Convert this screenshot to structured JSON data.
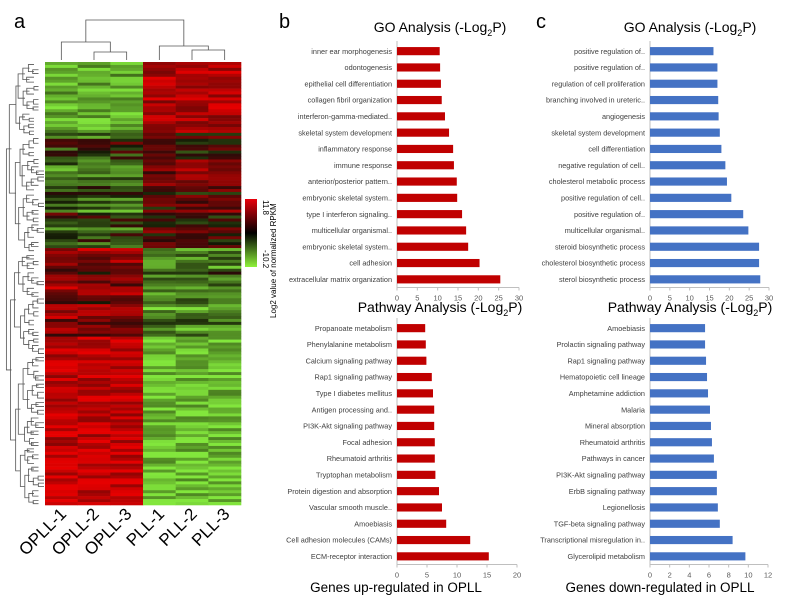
{
  "panel_labels": {
    "a": "a",
    "b": "b",
    "c": "c"
  },
  "heatmap": {
    "samples": [
      "OPLL-1",
      "OPLL-2",
      "OPLL-3",
      "PLL-1",
      "PLL-2",
      "PLL-3"
    ],
    "colorbar": {
      "label": "Log2 value of normalized RPKM",
      "max_label": "11.8",
      "min_label": "-10.2",
      "max": 11.8,
      "min": -10.2,
      "colors": {
        "high": "#e8000b",
        "mid": "#000000",
        "low": "#8ef23a"
      }
    }
  },
  "footers": {
    "up": "Genes up-regulated in OPLL",
    "down": "Genes down-regulated in OPLL"
  },
  "colors": {
    "up_bar": "#c00000",
    "down_bar": "#4472c4"
  },
  "chart_data": [
    {
      "id": "go-up",
      "type": "bar",
      "orientation": "horizontal",
      "title_main": "GO Analysis (-Log",
      "title_sub": "2",
      "title_end": "P)",
      "categories": [
        "inner ear morphogenesis",
        "odontogenesis",
        "epithelial cell differentiation",
        "collagen fibril organization",
        "interferon-gamma-mediated..",
        "skeletal system development",
        "inflammatory response",
        "immune response",
        "anterior/posterior pattern..",
        "embryonic skeletal system..",
        "type I interferon signaling..",
        "multicellular organismal..",
        "embryonic skeletal system..",
        "cell adhesion",
        "extracellular matrix organization"
      ],
      "values": [
        10.5,
        10.6,
        10.8,
        11.0,
        11.8,
        12.8,
        13.8,
        14.0,
        14.7,
        14.8,
        16.0,
        17.0,
        17.5,
        20.3,
        25.4
      ],
      "xlim": [
        0,
        30
      ],
      "xticks": [
        0,
        5,
        10,
        15,
        20,
        25,
        30
      ],
      "color": "#c00000"
    },
    {
      "id": "go-down",
      "type": "bar",
      "orientation": "horizontal",
      "title_main": "GO Analysis (-Log",
      "title_sub": "2",
      "title_end": "P)",
      "categories": [
        "positive regulation of..",
        "positive regulation of..",
        "regulation of cell proliferation",
        "branching involved in ureteric..",
        "angiogenesis",
        "skeletal system development",
        "cell differentiation",
        "negative regulation of cell..",
        "cholesterol metabolic process",
        "positive regulation of cell..",
        "positive regulation of..",
        "multicellular organismal..",
        "steroid biosynthetic process",
        "cholesterol biosynthetic process",
        "sterol biosynthetic process"
      ],
      "values": [
        16.0,
        17.0,
        17.0,
        17.2,
        17.3,
        17.6,
        18.0,
        19.0,
        19.4,
        20.5,
        23.5,
        24.8,
        27.5,
        27.5,
        27.8
      ],
      "xlim": [
        0,
        30
      ],
      "xticks": [
        0,
        5,
        10,
        15,
        20,
        25,
        30
      ],
      "color": "#4472c4"
    },
    {
      "id": "pathway-up",
      "type": "bar",
      "orientation": "horizontal",
      "title_main": "Pathway Analysis (-Log",
      "title_sub": "2",
      "title_end": "P)",
      "categories": [
        "Propanoate metabolism",
        "Phenylalanine metabolism",
        "Calcium signaling pathway",
        "Rap1 signaling pathway",
        "Type I diabetes mellitus",
        "Antigen processing and..",
        "PI3K-Akt signaling pathway",
        "Focal adhesion",
        "Rheumatoid arthritis",
        "Tryptophan metabolism",
        "Protein digestion and absorption",
        "Vascular smooth muscle..",
        "Amoebiasis",
        "Cell adhesion molecules (CAMs)",
        "ECM-receptor interaction"
      ],
      "values": [
        4.7,
        4.8,
        4.9,
        5.8,
        6.0,
        6.2,
        6.2,
        6.3,
        6.3,
        6.4,
        7.0,
        7.5,
        8.2,
        12.2,
        15.3
      ],
      "xlim": [
        0,
        20
      ],
      "xticks": [
        0,
        5,
        10,
        15,
        20
      ],
      "color": "#c00000"
    },
    {
      "id": "pathway-down",
      "type": "bar",
      "orientation": "horizontal",
      "title_main": "Pathway Analysis (-Log",
      "title_sub": "2",
      "title_end": "P)",
      "categories": [
        "Amoebiasis",
        "Prolactin signaling pathway",
        "Rap1 signaling pathway",
        "Hematopoietic cell lineage",
        "Amphetamine addiction",
        "Malaria",
        "Mineral absorption",
        "Rheumatoid arthritis",
        "Pathways in cancer",
        "PI3K-Akt signaling pathway",
        "ErbB signaling pathway",
        "Legionellosis",
        "TGF-beta signaling pathway",
        "Transcriptional misregulation in..",
        "Glycerolipid metabolism"
      ],
      "values": [
        5.6,
        5.6,
        5.7,
        5.8,
        5.9,
        6.1,
        6.2,
        6.3,
        6.5,
        6.8,
        6.8,
        6.9,
        7.1,
        8.4,
        9.7
      ],
      "xlim": [
        0,
        12
      ],
      "xticks": [
        0,
        2,
        4,
        6,
        8,
        10,
        12
      ],
      "color": "#4472c4"
    }
  ]
}
